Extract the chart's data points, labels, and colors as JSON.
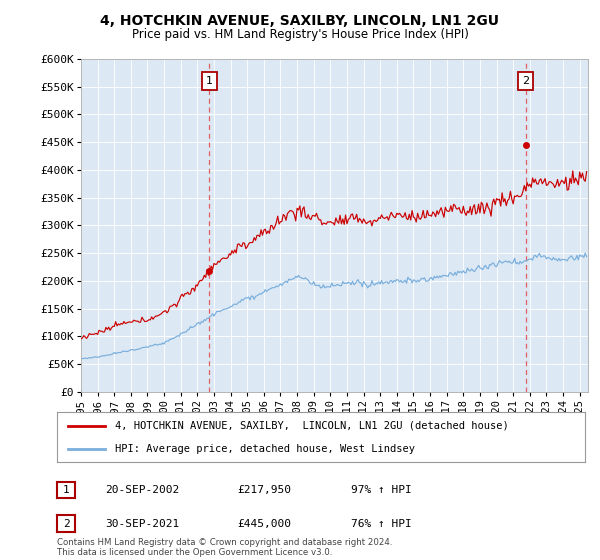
{
  "title": "4, HOTCHKIN AVENUE, SAXILBY, LINCOLN, LN1 2GU",
  "subtitle": "Price paid vs. HM Land Registry's House Price Index (HPI)",
  "ylabel_ticks": [
    "£0",
    "£50K",
    "£100K",
    "£150K",
    "£200K",
    "£250K",
    "£300K",
    "£350K",
    "£400K",
    "£450K",
    "£500K",
    "£550K",
    "£600K"
  ],
  "ylim": [
    0,
    600000
  ],
  "xlim_start": 1995.0,
  "xlim_end": 2025.5,
  "sale1_date": 2002.72,
  "sale1_price": 217950,
  "sale2_date": 2021.75,
  "sale2_price": 445000,
  "sale1_text": "20-SEP-2002",
  "sale1_amount": "£217,950",
  "sale1_hpi": "97% ↑ HPI",
  "sale2_text": "30-SEP-2021",
  "sale2_amount": "£445,000",
  "sale2_hpi": "76% ↑ HPI",
  "legend1": "4, HOTCHKIN AVENUE, SAXILBY,  LINCOLN, LN1 2GU (detached house)",
  "legend2": "HPI: Average price, detached house, West Lindsey",
  "footer": "Contains HM Land Registry data © Crown copyright and database right 2024.\nThis data is licensed under the Open Government Licence v3.0.",
  "line_color_red": "#cc0000",
  "line_color_blue": "#7aaedc",
  "bg_plot": "#dce9f5",
  "bg_fig": "#ffffff",
  "grid_color": "#ffffff",
  "dashed_color": "#e06060"
}
